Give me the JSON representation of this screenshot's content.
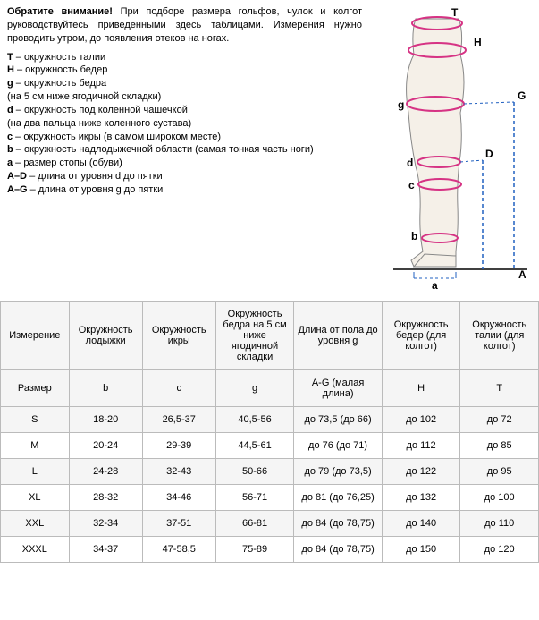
{
  "intro": {
    "bold": "Обратите внимание!",
    "text": " При подборе размера гольфов, чулок и колгот руководствуйтесь приведенными здесь таблицами. Измерения нужно проводить утром, до появления отеков на ногах."
  },
  "defs": [
    {
      "key": "T",
      "text": " – окружность талии"
    },
    {
      "key": "H",
      "text": " – окружность бедер"
    },
    {
      "key": "g",
      "text": " – окружность бедра",
      "sub": "(на 5 см ниже ягодичной складки)"
    },
    {
      "key": "d",
      "text": " – окружность под коленной чашечкой",
      "sub": "(на два пальца ниже коленного сустава)"
    },
    {
      "key": "c",
      "text": " – окружность икры (в самом широком месте)"
    },
    {
      "key": "b",
      "text": " – окружность надлодыжечной области (самая тонкая часть ноги)"
    },
    {
      "key": "a",
      "text": " – размер стопы (обуви)"
    },
    {
      "key": "A–D",
      "text": " – длина от уровня d до пятки"
    },
    {
      "key": "A–G",
      "text": " – длина от уровня g до пятки"
    }
  ],
  "diagram": {
    "labels": {
      "T": "T",
      "H": "H",
      "G": "G",
      "g": "g",
      "D": "D",
      "d": "d",
      "c": "c",
      "b": "b",
      "a": "a",
      "A": "A"
    },
    "leg_fill": "#f5f0e8",
    "leg_stroke": "#888",
    "ring_color": "#d63384",
    "guide_color": "#2060c0",
    "label_color": "#000",
    "label_fontsize": 12
  },
  "table": {
    "headers": [
      "Измерение",
      "Окружность лодыжки",
      "Окружность икры",
      "Окружность бедра на 5 см ниже ягодичной складки",
      "Длина от пола до уровня g",
      "Окружность бедер  (для колгот)",
      "Окружность талии (для колгот)"
    ],
    "row2": [
      "Размер",
      "b",
      "c",
      "g",
      "A-G (малая длина)",
      "H",
      "T"
    ],
    "rows": [
      [
        "S",
        "18-20",
        "26,5-37",
        "40,5-56",
        "до 73,5 (до 66)",
        "до 102",
        "до 72"
      ],
      [
        "M",
        "20-24",
        "29-39",
        "44,5-61",
        "до 76 (до 71)",
        "до 112",
        "до 85"
      ],
      [
        "L",
        "24-28",
        "32-43",
        "50-66",
        "до 79 (до 73,5)",
        "до 122",
        "до 95"
      ],
      [
        "XL",
        "28-32",
        "34-46",
        "56-71",
        "до 81 (до 76,25)",
        "до 132",
        "до 100"
      ],
      [
        "XXL",
        "32-34",
        "37-51",
        "66-81",
        "до 84 (до 78,75)",
        "до 140",
        "до 110"
      ],
      [
        "XXXL",
        "34-37",
        "47-58,5",
        "75-89",
        "до 84 (до 78,75)",
        "до 150",
        "до 120"
      ]
    ],
    "col_widths": [
      "70px",
      "75px",
      "75px",
      "80px",
      "90px",
      "80px",
      "80px"
    ],
    "header_bg": "#f5f5f5",
    "border_color": "#bbb"
  }
}
